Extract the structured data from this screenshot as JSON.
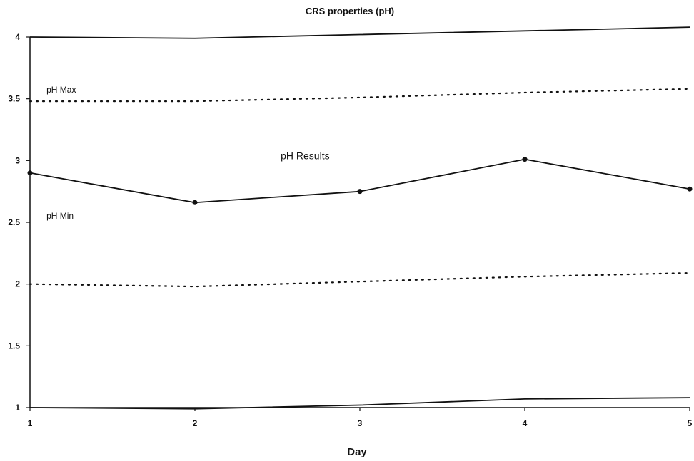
{
  "chart_data": {
    "type": "line",
    "title": "CRS properties (pH)",
    "xlabel": "Day",
    "ylabel": "",
    "xlim": [
      1,
      5
    ],
    "ylim": [
      1,
      4
    ],
    "x_ticks": [
      1,
      2,
      3,
      4,
      5
    ],
    "y_ticks": [
      1,
      1.5,
      2,
      2.5,
      3,
      3.5,
      4
    ],
    "y_tick_labels": [
      "1",
      "1.5",
      "2",
      "2.5",
      "3",
      "3.5",
      "4"
    ],
    "x_tick_labels": [
      "1",
      "2",
      "3",
      "4",
      "5"
    ],
    "grid": false,
    "series": [
      {
        "name": "pH Results",
        "x": [
          1,
          2,
          3,
          4,
          5
        ],
        "values": [
          2.9,
          2.66,
          2.75,
          3.01,
          2.77
        ],
        "style": "solid",
        "markers": true
      },
      {
        "name": "pH Max",
        "x": [
          1,
          2,
          3,
          4,
          5
        ],
        "values": [
          3.48,
          3.48,
          3.51,
          3.55,
          3.58
        ],
        "style": "dotted",
        "markers": false
      },
      {
        "name": "pH Min",
        "x": [
          1,
          2,
          3,
          4,
          5
        ],
        "values": [
          2.0,
          1.98,
          2.02,
          2.06,
          2.09
        ],
        "style": "dotted",
        "markers": false
      },
      {
        "name": "",
        "x": [
          1,
          2,
          3,
          4,
          5
        ],
        "values": [
          4.0,
          3.99,
          4.02,
          4.05,
          4.08
        ],
        "style": "solid",
        "markers": false
      },
      {
        "name": "",
        "x": [
          1,
          2,
          3,
          4,
          5
        ],
        "values": [
          1.0,
          0.99,
          1.02,
          1.07,
          1.08
        ],
        "style": "solid",
        "markers": false
      }
    ],
    "annotations": [
      {
        "text": "pH Max",
        "x": 1.1,
        "y": 3.55
      },
      {
        "text": "pH Results",
        "x": 2.52,
        "y": 3.01
      },
      {
        "text": "pH Min",
        "x": 1.1,
        "y": 2.53
      }
    ],
    "colors": {
      "line": "#111111",
      "background": "#ffffff"
    }
  }
}
